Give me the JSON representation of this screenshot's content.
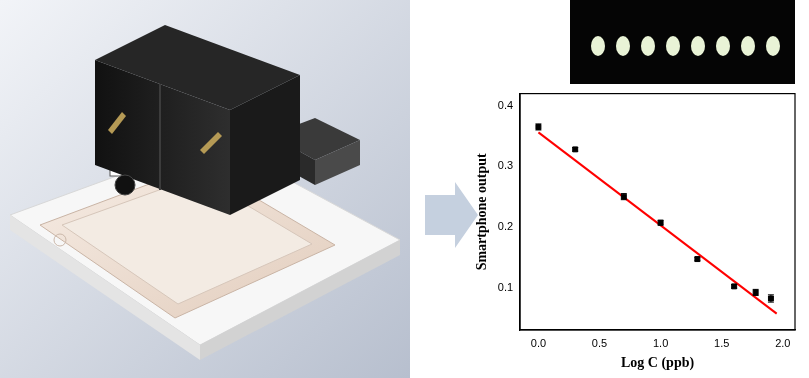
{
  "chart_data": {
    "type": "scatter",
    "x_label": "Log C (ppb)",
    "y_label": "Smartphone output",
    "xlim": [
      -0.15,
      2.1
    ],
    "xticks": [
      {
        "value": 0,
        "label": "0.0"
      },
      {
        "value": 0.5,
        "label": "0.5"
      },
      {
        "value": 1,
        "label": "1.0"
      },
      {
        "value": 1.5,
        "label": "1.5"
      },
      {
        "value": 2,
        "label": "2.0"
      }
    ],
    "ylim": [
      0.03,
      0.42
    ],
    "yticks": [
      0.1,
      0.2,
      0.3,
      0.4
    ],
    "grid": false,
    "series": [
      {
        "type": "scatter",
        "color": "#000000",
        "marker": "square",
        "x": [
          0.0,
          0.301,
          0.699,
          1.0,
          1.301,
          1.602,
          1.778,
          1.903
        ],
        "values": [
          0.365,
          0.328,
          0.25,
          0.207,
          0.147,
          0.102,
          0.092,
          0.082
        ],
        "errors": [
          0.005,
          0.003,
          0.005,
          0.004,
          0.003,
          0.003,
          0.005,
          0.006
        ]
      },
      {
        "type": "line",
        "color": "#ff0000",
        "line_style": "solid",
        "x": [
          0.0,
          1.95
        ],
        "values": [
          0.356,
          0.057
        ]
      }
    ]
  }
}
